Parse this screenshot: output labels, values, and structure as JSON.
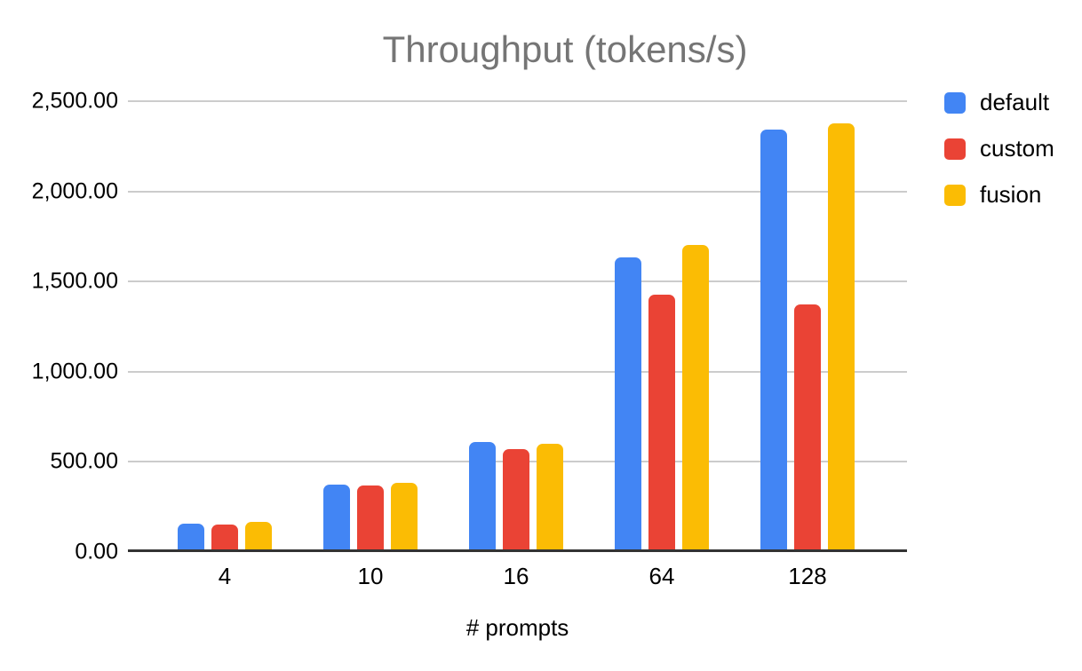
{
  "title": "Throughput (tokens/s)",
  "chart_data": {
    "type": "bar",
    "title": "Throughput (tokens/s)",
    "xlabel": "# prompts",
    "ylabel": "",
    "categories": [
      "4",
      "10",
      "16",
      "64",
      "128"
    ],
    "series": [
      {
        "name": "default",
        "color": "#4285F4",
        "values": [
          158,
          375,
          610,
          1632,
          2343
        ]
      },
      {
        "name": "custom",
        "color": "#EA4335",
        "values": [
          155,
          370,
          572,
          1428,
          1375
        ]
      },
      {
        "name": "fusion",
        "color": "#FBBC04",
        "values": [
          168,
          385,
          602,
          1702,
          2376
        ]
      }
    ],
    "ylim": [
      0,
      2500
    ],
    "ytick_interval": 500,
    "ytick_labels": [
      "0.00",
      "500.00",
      "1,000.00",
      "1,500.00",
      "2,000.00",
      "2,500.00"
    ],
    "grid": true,
    "legend_position": "top-right"
  },
  "colors": {
    "background": "#ffffff",
    "title_text": "#757575",
    "axis_text": "#000000",
    "gridline": "#cccccc",
    "baseline": "#333333"
  }
}
